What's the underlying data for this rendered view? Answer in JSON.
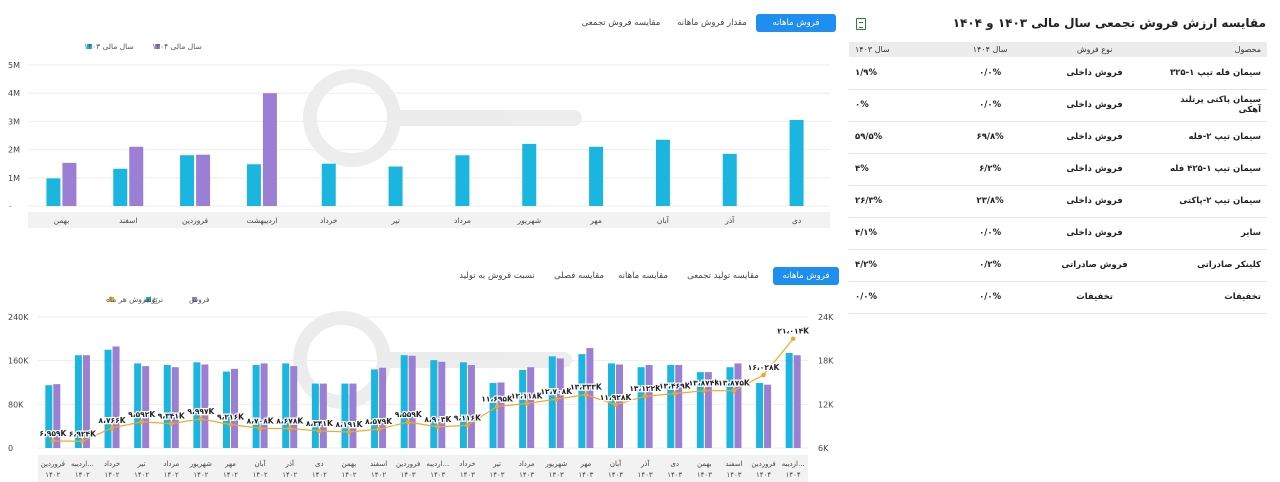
{
  "top_tabs": [
    {
      "label": "فروش ماهانه",
      "active": true
    },
    {
      "label": "مقدار فروش ماهانه",
      "active": false
    },
    {
      "label": "مقایسه فروش تجمعی",
      "active": false
    }
  ],
  "bottom_tabs": [
    {
      "label": "فروش ماهانه",
      "active": true
    },
    {
      "label": "مقایسه تولید تجمعی",
      "active": false
    },
    {
      "label": "مقایسه ماهانه",
      "active": false
    },
    {
      "label": "مقایسه فصلی",
      "active": false
    },
    {
      "label": "نسبت فروش به تولید",
      "active": false
    }
  ],
  "table": {
    "title": "مقایسه ارزش فروش تجمعی سال مالی ۱۴۰۳ و ۱۴۰۴",
    "export_icon": "excel-export-icon",
    "headers": {
      "product": "محصول",
      "type": "نوع فروش",
      "y1404": "سال ۱۴۰۴",
      "y1403": "سال ۱۴۰۳"
    },
    "rows": [
      {
        "product": "سیمان فله تیپ ۱-۳۲۵",
        "type": "فروش داخلی",
        "y1404": "۰/۰%",
        "y1403": "۱/۹%"
      },
      {
        "product": "سیمان پاکتی پرتلند آهکی",
        "type": "فروش داخلی",
        "y1404": "۰/۰%",
        "y1403": "۰%"
      },
      {
        "product": "سیمان تیپ ۲-فله",
        "type": "فروش داخلی",
        "y1404": "۶۹/۸%",
        "y1403": "۵۹/۵%"
      },
      {
        "product": "سیمان تیپ ۱-۴۲۵ فله",
        "type": "فروش داخلی",
        "y1404": "۶/۲%",
        "y1403": "۴%"
      },
      {
        "product": "سیمان تیپ ۲-پاکتی",
        "type": "فروش داخلی",
        "y1404": "۲۳/۸%",
        "y1403": "۲۶/۳%"
      },
      {
        "product": "سایر",
        "type": "فروش داخلی",
        "y1404": "۰/۰%",
        "y1403": "۴/۱%"
      },
      {
        "product": "کلینکر صادراتی",
        "type": "فروش صادراتی",
        "y1404": "۰/۲%",
        "y1403": "۴/۲%"
      },
      {
        "product": "تخفیفات",
        "type": "تخفیفات",
        "y1404": "۰/۰%",
        "y1403": "۰/۰%"
      }
    ]
  },
  "chart_data": [
    {
      "type": "bar",
      "legend": [
        {
          "name": "سال مالی ۱۴۰۴",
          "color": "#9b7fd4"
        },
        {
          "name": "سال مالی ۱۴۰۳",
          "color": "#1ab6e0"
        }
      ],
      "yticks": [
        "۰",
        "1M",
        "2M",
        "3M",
        "4M",
        "5M"
      ],
      "ylim": [
        0,
        5
      ],
      "categories": [
        "دی",
        "آذر",
        "آبان",
        "مهر",
        "شهریور",
        "مرداد",
        "تیر",
        "خرداد",
        "اردیبهشت",
        "فروردین",
        "اسفند",
        "بهمن"
      ],
      "series": [
        {
          "name": "سال مالی ۱۴۰۳",
          "values": [
            3.05,
            1.85,
            2.35,
            2.1,
            2.2,
            1.8,
            1.4,
            1.5,
            1.48,
            1.8,
            1.32,
            0.98
          ]
        },
        {
          "name": "سال مالی ۱۴۰۴",
          "values": [
            null,
            null,
            null,
            null,
            null,
            null,
            null,
            null,
            4.0,
            1.82,
            2.1,
            1.53
          ]
        }
      ]
    },
    {
      "type": "bar",
      "legend": [
        {
          "name": "فروش",
          "color": "#9b7fd4"
        },
        {
          "name": "تولید",
          "color": "#1ab6e0"
        },
        {
          "name": "نرخ فروش هر ماه",
          "color": "#f5a623"
        }
      ],
      "yticks_left": [
        "0",
        "80K",
        "160K",
        "240K"
      ],
      "ylim_left": [
        0,
        240
      ],
      "yticks_right": [
        "6K",
        "12K",
        "18K",
        "24K"
      ],
      "ylim_right": [
        6,
        24
      ],
      "categories": [
        {
          "month": "فروردین",
          "year": "۱۴۰۲"
        },
        {
          "month": "اردیبه...",
          "year": "۱۴۰۲"
        },
        {
          "month": "خرداد",
          "year": "۱۴۰۲"
        },
        {
          "month": "تیر",
          "year": "۱۴۰۲"
        },
        {
          "month": "مرداد",
          "year": "۱۴۰۲"
        },
        {
          "month": "شهریور",
          "year": "۱۴۰۲"
        },
        {
          "month": "مهر",
          "year": "۱۴۰۲"
        },
        {
          "month": "آبان",
          "year": "۱۴۰۲"
        },
        {
          "month": "آذر",
          "year": "۱۴۰۲"
        },
        {
          "month": "دی",
          "year": "۱۴۰۲"
        },
        {
          "month": "بهمن",
          "year": "۱۴۰۲"
        },
        {
          "month": "اسفند",
          "year": "۱۴۰۲"
        },
        {
          "month": "فروردین",
          "year": "۱۴۰۳"
        },
        {
          "month": "اردیبه...",
          "year": "۱۴۰۳"
        },
        {
          "month": "خرداد",
          "year": "۱۴۰۳"
        },
        {
          "month": "تیر",
          "year": "۱۴۰۳"
        },
        {
          "month": "مرداد",
          "year": "۱۴۰۳"
        },
        {
          "month": "شهریور",
          "year": "۱۴۰۳"
        },
        {
          "month": "مهر",
          "year": "۱۴۰۳"
        },
        {
          "month": "آبان",
          "year": "۱۴۰۳"
        },
        {
          "month": "آذر",
          "year": "۱۴۰۳"
        },
        {
          "month": "دی",
          "year": "۱۴۰۳"
        },
        {
          "month": "بهمن",
          "year": "۱۴۰۳"
        },
        {
          "month": "اسفند",
          "year": "۱۴۰۳"
        },
        {
          "month": "فروردین",
          "year": "۱۴۰۴"
        },
        {
          "month": "اردیبه...",
          "year": "۱۴۰۴"
        }
      ],
      "production": [
        115,
        170,
        180,
        155,
        152,
        157,
        140,
        152,
        155,
        118,
        118,
        144,
        170,
        161,
        157,
        119,
        143,
        168,
        172,
        155,
        148,
        152,
        139,
        148,
        119,
        174
      ],
      "sales": [
        117,
        170,
        186,
        150,
        148,
        153,
        145,
        155,
        150,
        118,
        118,
        147,
        169,
        158,
        152,
        120,
        148,
        164,
        183,
        153,
        152,
        152,
        139,
        155,
        116,
        170
      ],
      "rate_labels": [
        "۶،۹۵۹K",
        "۶،۹۲۴K",
        "۸،۷۶۶K",
        "۹،۵۹۲K",
        "۹،۳۴۱K",
        "۹،۹۹۷K",
        "۹،۲۱۶K",
        "۸،۷۰۸K",
        "۸،۶۷۸K",
        "۸،۳۴۱K",
        "۸،۱۹۱K",
        "۸،۵۷۹K",
        "۹،۵۵۹K",
        "۸،۹۰۳K",
        "۹،۱۱۶K",
        "۱۱،۶۹۵K",
        "۱۲،۱۱۸K",
        "۱۲،۷۰۸K",
        "۱۳،۳۳۳K",
        "۱۱،۹۲۸K",
        "۱۳،۱۲۲K",
        "۱۳،۴۶۹K",
        "۱۳،۸۷۴K",
        "۱۳،۸۷۵K",
        "۱۶،۰۲۸K",
        "۲۱،۰۱۴K"
      ],
      "rate": [
        6.959,
        6.924,
        8.766,
        9.592,
        9.341,
        9.997,
        9.216,
        8.708,
        8.678,
        8.341,
        8.191,
        8.579,
        9.559,
        8.903,
        9.116,
        11.695,
        12.118,
        12.708,
        13.333,
        11.928,
        13.122,
        13.469,
        13.874,
        13.875,
        16.028,
        21.014
      ]
    }
  ]
}
